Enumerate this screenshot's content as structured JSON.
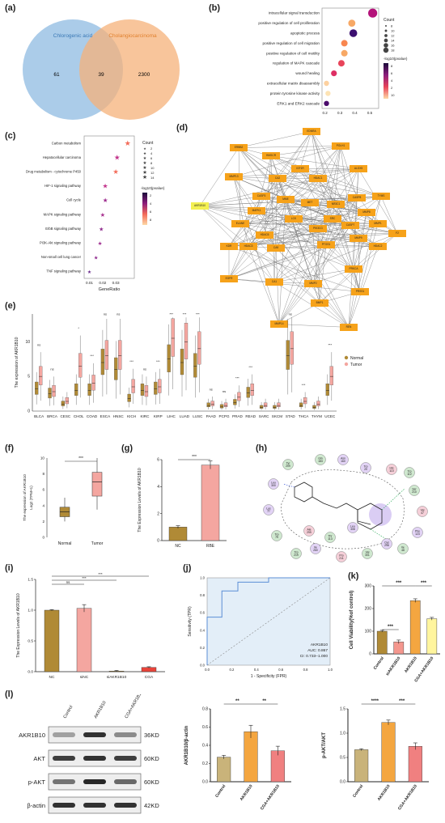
{
  "panels": {
    "a": {
      "label": "(a)",
      "venn": {
        "left": "Chlorogenic acid",
        "right": "Cholangiocarcinoma",
        "left_only": "61",
        "both": "39",
        "right_only": "2300",
        "colors": {
          "left": "#9cc3e5",
          "right": "#f6b27a"
        }
      }
    },
    "b": {
      "label": "(b)"
    },
    "c": {
      "label": "(c)"
    },
    "d": {
      "label": "(d)",
      "network": {
        "nodes": [
          "EDNRA",
          "ERBB2",
          "POLH1",
          "HMGCR",
          "IGF1R",
          "ALOX5",
          "MMP13",
          "CA2",
          "HDAC1",
          "TYMS",
          "CASP8",
          "AKR1B10",
          "CASP3",
          "MMP8",
          "MME",
          "MET",
          "NR3C1",
          "MAPK1",
          "CASP7",
          "ELANE",
          "MMP1",
          "LCK",
          "SRC",
          "F2",
          "KDR",
          "HDAC6",
          "HDAC3",
          "PIK3CG",
          "MMP9",
          "HDAC2",
          "CA9",
          "PTGS1",
          "EGFR",
          "CA1",
          "MMP2",
          "PRKCA",
          "PRSS1",
          "BMP1",
          "MMP14",
          "REN"
        ],
        "highlight": "AKR1B10"
      }
    },
    "e": {
      "label": "(e)"
    },
    "f": {
      "label": "(f)"
    },
    "g": {
      "label": "(g)"
    },
    "h": {
      "label": "(h)",
      "residues": [
        "Gln\n183",
        "Asn\n160",
        "Tyr\n209",
        "Trp\n20",
        "His\n110",
        "Trp\n112",
        "Leu\n300",
        "Ser\n210",
        "Lys\n77",
        "Val\n47",
        "Trp\n79",
        "Phe\n123",
        "Trp\n219",
        "Ile\n260",
        "Pro\n211",
        "Val\n301",
        "Cys\n298",
        "Ile\n48",
        "Leu\n308",
        "Ala\n299",
        "Thr\n113"
      ]
    },
    "i": {
      "label": "(i)"
    },
    "j": {
      "label": "(j)"
    },
    "k": {
      "label": "(k)"
    },
    "l": {
      "label": "(l)",
      "lanes": [
        "Control",
        "AKR1B10",
        "CGA+AKR1B10"
      ],
      "blots": [
        {
          "name": "AKR1B10",
          "kd": "36KD"
        },
        {
          "name": "AKT",
          "kd": "60KD"
        },
        {
          "name": "p-AKT",
          "kd": "60KD"
        },
        {
          "name": "β-actin",
          "kd": "42KD"
        }
      ]
    }
  },
  "chart_data": [
    {
      "id": "b",
      "type": "scatter",
      "categories": [
        "intracellular signal transduction",
        "positive regulation of cell proliferation",
        "apoptotic process",
        "positive regulation of cell migration",
        "positive regulation of cell motility",
        "regulation of MAPK cascade",
        "wound healing",
        "extracellular matrix disassembly",
        "protein tyrosine kinase activity",
        "ERK1 and ERK2 cascade"
      ],
      "x": [
        0.52,
        0.38,
        0.39,
        0.33,
        0.33,
        0.31,
        0.26,
        0.21,
        0.22,
        0.21
      ],
      "size": [
        18,
        12,
        14,
        10,
        10,
        10,
        8,
        6,
        6,
        6
      ],
      "color": [
        "#b4137a",
        "#f7a865",
        "#3b0f70",
        "#f8864f",
        "#f7a865",
        "#e8445a",
        "#de2f64",
        "#fdd1a0",
        "#fde3b4",
        "#4b0c6b"
      ],
      "xticks": [
        "0.2",
        "0.3",
        "0.4",
        "0.5"
      ],
      "xlim": [
        0.18,
        0.56
      ],
      "legend": {
        "size_title": "Count",
        "size_values": [
          "8",
          "10",
          "12",
          "14",
          "16",
          "18"
        ],
        "color_title": "-log10(pvalue)",
        "color_values": [
          "8",
          "6",
          "4",
          "2",
          "10"
        ]
      }
    },
    {
      "id": "c",
      "type": "scatter",
      "categories": [
        "Carbon metabolism",
        "Hepatocellular carcinoma",
        "Drug metabolism - cytochrome P450",
        "HIF-1 signaling pathway",
        "Cell cycle",
        "MAPK signaling pathway",
        "ErbB signaling pathway",
        "PI3K-Akt signaling pathway",
        "Non-small cell lung cancer",
        "TNF signaling pathway"
      ],
      "x": [
        0.039,
        0.031,
        0.03,
        0.022,
        0.022,
        0.02,
        0.019,
        0.018,
        0.015,
        0.01
      ],
      "color": [
        "#f36b59",
        "#c2338b",
        "#f36b59",
        "#c2338b",
        "#9d2b8e",
        "#a72f8e",
        "#8f2a8d",
        "#9d2b8e",
        "#8f2a8d",
        "#6a2a8c"
      ],
      "xticks": [
        "0.01",
        "0.02",
        "0.03"
      ],
      "xlim": [
        0.006,
        0.044
      ],
      "xlabel": "GeneRatio",
      "legend": {
        "size_title": "Count",
        "size_values": [
          "2",
          "4",
          "6",
          "8",
          "10",
          "12",
          "14"
        ],
        "color_title": "-log10(pvalue)",
        "color_values": [
          "2",
          "4",
          "6",
          "8"
        ]
      }
    },
    {
      "id": "e",
      "type": "box",
      "categories": [
        "BLCA",
        "BRCA",
        "CESC",
        "CHOL",
        "COAD",
        "ESCA",
        "HNSC",
        "KICH",
        "KIRC",
        "KIRP",
        "LIHC",
        "LUAD",
        "LUSC",
        "PAAD",
        "PCPG",
        "PRAD",
        "READ",
        "SARC",
        "SKCM",
        "STAD",
        "THCA",
        "THYM",
        "UCEC"
      ],
      "series": [
        {
          "name": "Normal",
          "median": [
            3.2,
            2.5,
            1.0,
            3.0,
            3.0,
            7.0,
            6.0,
            1.8,
            3.0,
            3.2,
            7.5,
            7.0,
            6.5,
            0.8,
            0.6,
            1.2,
            2.6,
            0.5,
            0.5,
            8.0,
            0.8,
            0.5,
            3.0
          ]
        },
        {
          "name": "Tumor",
          "median": [
            5.0,
            2.8,
            1.4,
            6.5,
            4.0,
            8.0,
            8.0,
            3.5,
            2.8,
            3.5,
            10.5,
            10.0,
            9.0,
            1.0,
            0.8,
            2.0,
            3.0,
            0.8,
            0.8,
            9.0,
            1.4,
            1.0,
            5.0
          ]
        }
      ],
      "sig": [
        "ns",
        "ns",
        "",
        "*",
        "***",
        "ns",
        "ns",
        "***",
        "ns",
        "***",
        "***",
        "***",
        "***",
        "ns",
        "ns",
        "***",
        "***",
        "",
        "",
        "ns",
        "***",
        "",
        "***"
      ],
      "ylabel": "The expression of AKR1B10\nLog2 (TPM+1)",
      "ylim": [
        0,
        14
      ],
      "yticks": [
        "0",
        "5",
        "10"
      ]
    },
    {
      "id": "f",
      "type": "box",
      "categories": [
        "Normal",
        "Tumor"
      ],
      "q": [
        [
          2.0,
          2.6,
          3.2,
          3.8,
          5.0
        ],
        [
          3.5,
          5.2,
          7.0,
          8.2,
          10.0
        ]
      ],
      "sig": "***",
      "ylabel": "The expression of AKR1B10\nLog2 (TPM+1)",
      "ylim": [
        0,
        10
      ],
      "yticks": [
        "0",
        "2",
        "4",
        "6",
        "8",
        "10"
      ]
    },
    {
      "id": "g",
      "type": "bar",
      "categories": [
        "NC",
        "RBE"
      ],
      "values": [
        1.0,
        5.6
      ],
      "errors": [
        0.1,
        0.3
      ],
      "sig": "***",
      "ylabel": "The Expression Levels of AKR1B10",
      "ylim": [
        0,
        6
      ],
      "yticks": [
        "0",
        "2",
        "4",
        "6"
      ]
    },
    {
      "id": "i",
      "type": "bar",
      "categories": [
        "NC",
        "siNC",
        "siAKR1B10",
        "CGA"
      ],
      "values": [
        1.0,
        1.03,
        0.01,
        0.07
      ],
      "errors": [
        0.01,
        0.06,
        0.01,
        0.01
      ],
      "sig": [
        "ns",
        "***",
        "***"
      ],
      "ylabel": "The Expression Levels of AKR1B10",
      "ylim": [
        0,
        1.5
      ],
      "yticks": [
        "0.0",
        "0.5",
        "1.0",
        "1.5"
      ]
    },
    {
      "id": "j",
      "type": "line",
      "x": [
        0,
        0,
        0.12,
        0.12,
        0.25,
        0.25,
        0.5,
        0.5,
        1.0
      ],
      "y": [
        0,
        0.55,
        0.55,
        0.85,
        0.85,
        0.95,
        0.95,
        1.0,
        1.0
      ],
      "xlabel": "1 - Specificity (FPR)",
      "ylabel": "Sensitivity (TPR)",
      "annotation": [
        "AKR1B10",
        "AUC: 0.867",
        "CI: 0.733−1.000"
      ],
      "xticks": [
        "0.0",
        "0.2",
        "0.4",
        "0.6",
        "0.8",
        "1.0"
      ],
      "yticks": [
        "0.0",
        "0.2",
        "0.4",
        "0.6",
        "0.8",
        "1.0"
      ]
    },
    {
      "id": "k",
      "type": "bar",
      "categories": [
        "Control",
        "siAKR1B10",
        "AKR1B10",
        "CGA+AKR1B10"
      ],
      "values": [
        100,
        53,
        235,
        155
      ],
      "errors": [
        4,
        8,
        8,
        6
      ],
      "colors": [
        "#b08a36",
        "#f4978e",
        "#f4a640",
        "#fff59d"
      ],
      "sig": [
        "***",
        "***",
        "***"
      ],
      "ylabel": "Cell Viability(%of control)",
      "ylim": [
        0,
        300
      ],
      "yticks": [
        "0",
        "100",
        "200",
        "300"
      ]
    },
    {
      "id": "l2",
      "type": "bar",
      "categories": [
        "Control",
        "AKR1B10",
        "CGA+AKR1B10"
      ],
      "values": [
        0.27,
        0.55,
        0.34
      ],
      "errors": [
        0.02,
        0.07,
        0.05
      ],
      "colors": [
        "#c9b37a",
        "#f4a640",
        "#f08080"
      ],
      "sig": [
        "**",
        "**"
      ],
      "ylabel": "AKR1B10/β-actin",
      "ylim": [
        0,
        0.8
      ],
      "yticks": [
        "0.0",
        "0.2",
        "0.4",
        "0.6",
        "0.8"
      ]
    },
    {
      "id": "l3",
      "type": "bar",
      "categories": [
        "Control",
        "AKR1B10",
        "CGA+AKR1B10"
      ],
      "values": [
        0.66,
        1.22,
        0.73
      ],
      "errors": [
        0.02,
        0.05,
        0.07
      ],
      "colors": [
        "#c9b37a",
        "#f4a640",
        "#f08080"
      ],
      "sig": [
        "****",
        "***"
      ],
      "ylabel": "p-AKT/AKT",
      "ylim": [
        0,
        1.5
      ],
      "yticks": [
        "0.0",
        "0.5",
        "1.0",
        "1.5"
      ]
    }
  ]
}
